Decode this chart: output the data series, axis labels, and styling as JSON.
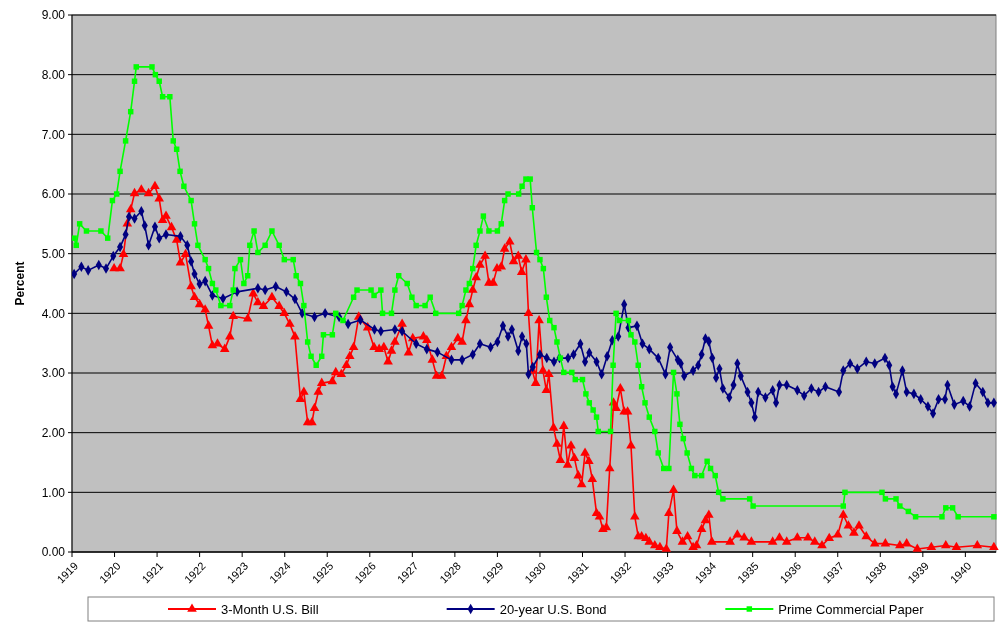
{
  "chart_data": {
    "type": "line",
    "ylabel": "Percent",
    "xlim": [
      1919,
      1940.72
    ],
    "ylim": [
      0,
      9
    ],
    "xticks": [
      1919,
      1920,
      1921,
      1922,
      1923,
      1924,
      1925,
      1926,
      1927,
      1928,
      1929,
      1930,
      1931,
      1932,
      1933,
      1934,
      1935,
      1936,
      1937,
      1938,
      1939,
      1940
    ],
    "yticks": [
      {
        "value": 0,
        "label": "0.00"
      },
      {
        "value": 1,
        "label": "1.00"
      },
      {
        "value": 2,
        "label": "2.00"
      },
      {
        "value": 3,
        "label": "3.00"
      },
      {
        "value": 4,
        "label": "4.00"
      },
      {
        "value": 5,
        "label": "5.00"
      },
      {
        "value": 6,
        "label": "6.00"
      },
      {
        "value": 7,
        "label": "7.00"
      },
      {
        "value": 8,
        "label": "8.00"
      },
      {
        "value": 9,
        "label": "9.00"
      }
    ],
    "grid": "y",
    "legend": "bottom",
    "line_style": "solid",
    "series": [
      {
        "name": "3-Month U.S. Bill",
        "color": "#ff0000",
        "marker": "triangle",
        "x": [
          1919.99,
          1920.13,
          1920.21,
          1920.3,
          1920.38,
          1920.47,
          1920.63,
          1920.8,
          1920.95,
          1921.05,
          1921.13,
          1921.21,
          1921.34,
          1921.46,
          1921.55,
          1921.67,
          1921.8,
          1921.88,
          1922,
          1922.13,
          1922.21,
          1922.3,
          1922.42,
          1922.59,
          1922.71,
          1922.79,
          1923.13,
          1923.26,
          1923.37,
          1923.5,
          1923.7,
          1923.87,
          1923.99,
          1924.12,
          1924.24,
          1924.37,
          1924.45,
          1924.54,
          1924.64,
          1924.7,
          1924.79,
          1924.87,
          1925.12,
          1925.2,
          1925.33,
          1925.45,
          1925.53,
          1925.62,
          1925.74,
          1925.95,
          1926.1,
          1926.22,
          1926.33,
          1926.43,
          1926.51,
          1926.59,
          1926.76,
          1926.91,
          1927.01,
          1927.26,
          1927.34,
          1927.47,
          1927.57,
          1927.69,
          1927.8,
          1927.92,
          1928.07,
          1928.17,
          1928.26,
          1928.34,
          1928.42,
          1928.5,
          1928.59,
          1928.71,
          1928.8,
          1928.9,
          1928.99,
          1929.09,
          1929.17,
          1929.29,
          1929.38,
          1929.49,
          1929.57,
          1929.67,
          1929.73,
          1929.82,
          1929.9,
          1929.98,
          1930.07,
          1930.15,
          1930.21,
          1930.32,
          1930.4,
          1930.48,
          1930.56,
          1930.65,
          1930.73,
          1930.81,
          1930.9,
          1930.98,
          1931.06,
          1931.15,
          1931.23,
          1931.33,
          1931.4,
          1931.48,
          1931.56,
          1931.64,
          1931.73,
          1931.79,
          1931.89,
          1931.98,
          1932.06,
          1932.14,
          1932.23,
          1932.31,
          1932.39,
          1932.49,
          1932.57,
          1932.7,
          1932.82,
          1932.97,
          1933.03,
          1933.14,
          1933.22,
          1933.35,
          1933.47,
          1933.6,
          1933.68,
          1933.8,
          1933.89,
          1933.97,
          1934.04,
          1934.47,
          1934.64,
          1934.8,
          1934.97,
          1935.47,
          1935.63,
          1935.8,
          1936.05,
          1936.3,
          1936.46,
          1936.63,
          1936.8,
          1937,
          1937.13,
          1937.25,
          1937.38,
          1937.5,
          1937.67,
          1937.87,
          1938.12,
          1938.46,
          1938.62,
          1938.87,
          1939.2,
          1939.54,
          1939.79,
          1940.28,
          1940.67
        ],
        "values": [
          4.75,
          4.75,
          4.99,
          5.5,
          5.74,
          6.01,
          6.07,
          6.01,
          6.13,
          5.92,
          5.56,
          5.63,
          5.44,
          5.23,
          4.85,
          4.99,
          4.45,
          4.27,
          4.15,
          4.06,
          3.79,
          3.46,
          3.49,
          3.4,
          3.61,
          3.95,
          3.91,
          4.33,
          4.18,
          4.12,
          4.27,
          4.12,
          4,
          3.82,
          3.61,
          2.56,
          2.68,
          2.17,
          2.17,
          2.41,
          2.68,
          2.83,
          2.86,
          3.01,
          2.98,
          3.13,
          3.28,
          3.43,
          3.94,
          3.76,
          3.43,
          3.4,
          3.43,
          3.19,
          3.37,
          3.52,
          3.82,
          3.34,
          3.58,
          3.61,
          3.55,
          3.22,
          2.95,
          2.95,
          3.28,
          3.43,
          3.58,
          3.52,
          3.88,
          4.15,
          4.39,
          4.6,
          4.81,
          4.96,
          4.51,
          4.51,
          4.75,
          4.78,
          5.08,
          5.2,
          4.87,
          4.96,
          4.69,
          4.9,
          4,
          3.04,
          2.83,
          3.88,
          3.04,
          2.71,
          2.98,
          2.08,
          1.81,
          1.54,
          2.11,
          1.46,
          1.78,
          1.57,
          1.28,
          1.13,
          1.66,
          1.52,
          1.22,
          0.65,
          0.59,
          0.38,
          0.41,
          1.4,
          2.5,
          2.41,
          2.74,
          2.35,
          2.35,
          1.78,
          0.59,
          0.26,
          0.26,
          0.23,
          0.17,
          0.11,
          0.08,
          0.05,
          0.65,
          1.04,
          0.35,
          0.17,
          0.26,
          0.08,
          0.11,
          0.38,
          0.53,
          0.62,
          0.17,
          0.17,
          0.29,
          0.24,
          0.17,
          0.17,
          0.24,
          0.17,
          0.24,
          0.24,
          0.17,
          0.11,
          0.23,
          0.29,
          0.62,
          0.44,
          0.32,
          0.44,
          0.26,
          0.14,
          0.14,
          0.11,
          0.14,
          0.05,
          0.08,
          0.11,
          0.08,
          0.11,
          0.08
        ]
      },
      {
        "name": "20-year U.S. Bond",
        "color": "#000080",
        "marker": "diamond",
        "x": [
          1919.05,
          1919.22,
          1919.38,
          1919.63,
          1919.8,
          1919.97,
          1920.13,
          1920.26,
          1920.34,
          1920.47,
          1920.63,
          1920.71,
          1920.8,
          1920.95,
          1921.05,
          1921.21,
          1921.55,
          1921.71,
          1921.8,
          1921.88,
          1922,
          1922.13,
          1922.3,
          1922.55,
          1922.88,
          1923.37,
          1923.54,
          1923.79,
          1924.04,
          1924.24,
          1924.41,
          1924.7,
          1924.95,
          1925.28,
          1925.49,
          1925.78,
          1926.11,
          1926.26,
          1926.59,
          1926.76,
          1927.09,
          1927.34,
          1927.59,
          1927.92,
          1928.17,
          1928.42,
          1928.59,
          1928.84,
          1929,
          1929.13,
          1929.25,
          1929.34,
          1929.49,
          1929.58,
          1929.68,
          1929.73,
          1929.83,
          1930,
          1930.16,
          1930.33,
          1930.46,
          1930.66,
          1930.79,
          1930.95,
          1931.06,
          1931.16,
          1931.33,
          1931.45,
          1931.58,
          1931.7,
          1931.84,
          1931.98,
          1932.08,
          1932.28,
          1932.41,
          1932.57,
          1932.78,
          1932.95,
          1933.06,
          1933.24,
          1933.31,
          1933.39,
          1933.6,
          1933.72,
          1933.8,
          1933.89,
          1933.97,
          1934.05,
          1934.14,
          1934.22,
          1934.3,
          1934.45,
          1934.55,
          1934.64,
          1934.72,
          1934.88,
          1934.97,
          1935.05,
          1935.13,
          1935.3,
          1935.47,
          1935.55,
          1935.63,
          1935.8,
          1936.05,
          1936.21,
          1936.38,
          1936.55,
          1936.71,
          1937.03,
          1937.13,
          1937.29,
          1937.46,
          1937.67,
          1937.87,
          1938.11,
          1938.21,
          1938.29,
          1938.37,
          1938.52,
          1938.62,
          1938.79,
          1938.95,
          1939.12,
          1939.24,
          1939.37,
          1939.52,
          1939.58,
          1939.74,
          1939.95,
          1940.1,
          1940.24,
          1940.41,
          1940.53,
          1940.67
        ],
        "values": [
          4.66,
          4.78,
          4.72,
          4.81,
          4.75,
          4.96,
          5.11,
          5.32,
          5.62,
          5.59,
          5.71,
          5.47,
          5.14,
          5.45,
          5.26,
          5.32,
          5.29,
          5.14,
          4.87,
          4.66,
          4.49,
          4.54,
          4.3,
          4.25,
          4.36,
          4.42,
          4.39,
          4.45,
          4.36,
          4.24,
          4,
          3.94,
          4,
          3.94,
          3.82,
          3.89,
          3.73,
          3.7,
          3.73,
          3.7,
          3.49,
          3.4,
          3.35,
          3.22,
          3.22,
          3.31,
          3.49,
          3.43,
          3.52,
          3.79,
          3.61,
          3.73,
          3.37,
          3.61,
          3.49,
          2.98,
          3.1,
          3.31,
          3.25,
          3.19,
          3.25,
          3.25,
          3.31,
          3.49,
          3.19,
          3.34,
          3.19,
          2.98,
          3.28,
          3.55,
          3.61,
          4.15,
          3.76,
          3.79,
          3.49,
          3.4,
          3.25,
          2.98,
          3.43,
          3.22,
          3.16,
          2.95,
          3.04,
          3.13,
          3.31,
          3.58,
          3.53,
          3.25,
          2.92,
          3.07,
          2.74,
          2.59,
          2.8,
          3.16,
          2.95,
          2.68,
          2.5,
          2.26,
          2.68,
          2.59,
          2.71,
          2.5,
          2.8,
          2.8,
          2.71,
          2.62,
          2.74,
          2.68,
          2.77,
          2.68,
          3.04,
          3.16,
          3.07,
          3.19,
          3.16,
          3.25,
          3.13,
          2.77,
          2.65,
          3.04,
          2.68,
          2.65,
          2.56,
          2.44,
          2.32,
          2.56,
          2.56,
          2.8,
          2.47,
          2.53,
          2.44,
          2.83,
          2.68,
          2.5,
          2.5
        ]
      },
      {
        "name": "Prime Commercial Paper",
        "color": "#00ff00",
        "marker": "square",
        "x": [
          1919.05,
          1919.1,
          1919.18,
          1919.34,
          1919.68,
          1919.84,
          1919.95,
          1920.05,
          1920.13,
          1920.26,
          1920.38,
          1920.47,
          1920.51,
          1920.88,
          1920.96,
          1921.05,
          1921.13,
          1921.3,
          1921.38,
          1921.46,
          1921.54,
          1921.63,
          1921.8,
          1921.88,
          1921.96,
          1922.13,
          1922.21,
          1922.3,
          1922.38,
          1922.5,
          1922.71,
          1922.79,
          1922.83,
          1922.96,
          1923.04,
          1923.13,
          1923.18,
          1923.28,
          1923.37,
          1923.54,
          1923.7,
          1923.87,
          1923.99,
          1924.2,
          1924.27,
          1924.37,
          1924.45,
          1924.54,
          1924.62,
          1924.74,
          1924.87,
          1924.91,
          1925.12,
          1925.2,
          1925.37,
          1925.62,
          1925.7,
          1926.03,
          1926.1,
          1926.26,
          1926.3,
          1926.51,
          1926.59,
          1926.68,
          1926.88,
          1926.99,
          1927.09,
          1927.3,
          1927.42,
          1927.55,
          1928.09,
          1928.17,
          1928.26,
          1928.34,
          1928.42,
          1928.5,
          1928.59,
          1928.67,
          1928.8,
          1929,
          1929.09,
          1929.17,
          1929.25,
          1929.5,
          1929.58,
          1929.67,
          1929.77,
          1929.82,
          1929.92,
          1930,
          1930.08,
          1930.15,
          1930.23,
          1930.33,
          1930.4,
          1930.48,
          1930.56,
          1930.75,
          1930.83,
          1931,
          1931.08,
          1931.16,
          1931.25,
          1931.33,
          1931.37,
          1931.66,
          1931.72,
          1931.79,
          1931.87,
          1932.08,
          1932.14,
          1932.23,
          1932.31,
          1932.39,
          1932.47,
          1932.57,
          1932.7,
          1932.78,
          1932.91,
          1933.03,
          1933.14,
          1933.22,
          1933.29,
          1933.37,
          1933.46,
          1933.56,
          1933.64,
          1933.8,
          1933.93,
          1934.01,
          1934.12,
          1934.2,
          1934.3,
          1934.93,
          1935.01,
          1937.13,
          1937.17,
          1938.04,
          1938.12,
          1938.37,
          1938.46,
          1938.66,
          1938.83,
          1939.45,
          1939.54,
          1939.7,
          1939.83,
          1940.67
        ],
        "values": [
          5.26,
          5.14,
          5.5,
          5.38,
          5.38,
          5.26,
          5.89,
          6,
          6.38,
          6.89,
          7.38,
          7.89,
          8.13,
          8.13,
          8,
          7.89,
          7.63,
          7.63,
          6.89,
          6.75,
          6.38,
          6.13,
          5.89,
          5.5,
          5.14,
          4.9,
          4.75,
          4.5,
          4.39,
          4.13,
          4.13,
          4.39,
          4.75,
          4.9,
          4.5,
          4.63,
          5.14,
          5.38,
          5.02,
          5.14,
          5.38,
          5.14,
          4.9,
          4.9,
          4.63,
          4.5,
          4.13,
          3.52,
          3.28,
          3.13,
          3.28,
          3.64,
          3.64,
          4,
          3.88,
          4.27,
          4.39,
          4.39,
          4.3,
          4.39,
          4,
          4,
          4.39,
          4.63,
          4.5,
          4.27,
          4.13,
          4.13,
          4.27,
          4,
          4,
          4.13,
          4.39,
          4.5,
          4.75,
          5.14,
          5.38,
          5.63,
          5.38,
          5.38,
          5.5,
          5.89,
          6,
          6,
          6.13,
          6.25,
          6.25,
          5.77,
          5.02,
          4.9,
          4.75,
          4.27,
          3.88,
          3.76,
          3.52,
          3.25,
          3.01,
          3.01,
          2.89,
          2.89,
          2.65,
          2.5,
          2.38,
          2.26,
          2.02,
          2.02,
          3.13,
          4,
          3.88,
          3.88,
          3.64,
          3.52,
          3.13,
          2.77,
          2.5,
          2.26,
          2.02,
          1.66,
          1.4,
          1.4,
          3.01,
          2.65,
          2.14,
          1.9,
          1.66,
          1.4,
          1.28,
          1.28,
          1.52,
          1.4,
          1.28,
          1,
          0.89,
          0.89,
          0.77,
          0.77,
          1,
          1,
          0.89,
          0.89,
          0.77,
          0.68,
          0.59,
          0.59,
          0.74,
          0.74,
          0.59,
          0.59
        ]
      }
    ]
  }
}
